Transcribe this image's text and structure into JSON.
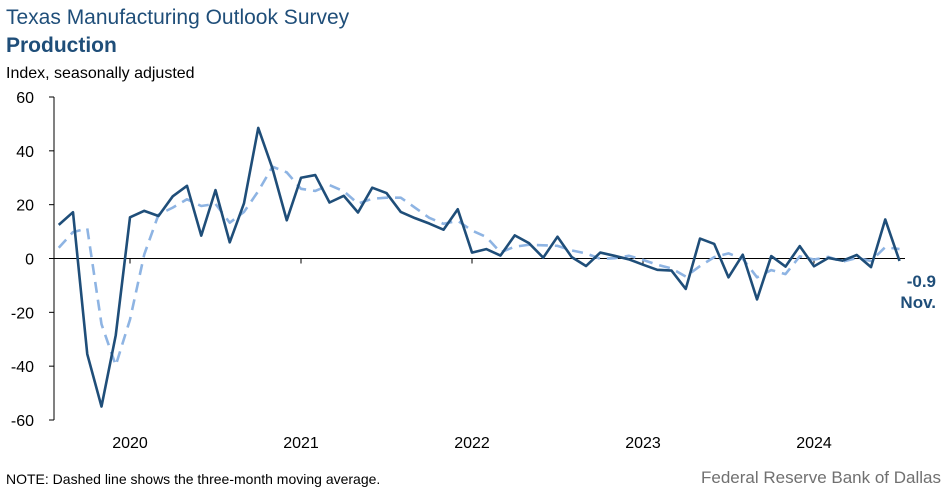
{
  "header": {
    "title": "Texas Manufacturing Outlook Survey",
    "subtitle": "Production",
    "units": "Index, seasonally adjusted"
  },
  "footer": {
    "note": "NOTE: Dashed line shows the three-month  moving average.",
    "source": "Federal Reserve Bank of Dallas"
  },
  "annotation": {
    "value": "-0.9",
    "label": "Nov."
  },
  "colors": {
    "series_solid": "#1f4e79",
    "series_dashed": "#8eb4e3"
  },
  "chart_data": {
    "type": "line",
    "title": "Texas Manufacturing Outlook Survey",
    "subtitle": "Production",
    "ylabel": "Index, seasonally adjusted",
    "ylim": [
      -60,
      60
    ],
    "yticks": [
      60,
      40,
      20,
      0,
      -20,
      -40,
      -60
    ],
    "xtick_labels": [
      "2020",
      "2021",
      "2022",
      "2023",
      "2024"
    ],
    "x_start": "2019-08",
    "x_end": "2024-11",
    "grid": false,
    "series": [
      {
        "style": "solid",
        "values": [
          12.5,
          17.2,
          -35.5,
          -55.0,
          -28.5,
          15.3,
          17.7,
          15.8,
          23.1,
          27.0,
          8.5,
          25.4,
          6.0,
          20.5,
          48.5,
          33.4,
          14.2,
          30.0,
          31.0,
          20.8,
          23.3,
          17.1,
          26.3,
          24.3,
          17.3,
          15.0,
          13.0,
          10.7,
          18.3,
          2.2,
          3.5,
          1.1,
          8.6,
          5.7,
          0.3,
          8.1,
          0.5,
          -2.8,
          2.2,
          1.0,
          -0.3,
          -2.3,
          -4.2,
          -4.5,
          -11.3,
          7.4,
          5.4,
          -7.0,
          1.4,
          -15.2,
          0.9,
          -3.0,
          4.6,
          -2.9,
          0.2,
          -0.8,
          1.3,
          -3.2,
          14.5,
          -0.9
        ]
      },
      {
        "style": "dashed",
        "values": [
          4.0,
          9.8,
          11.2,
          -24.4,
          -39.7,
          -22.7,
          1.5,
          16.3,
          18.9,
          22.0,
          19.5,
          20.3,
          13.3,
          17.3,
          25.0,
          34.1,
          32.0,
          25.9,
          25.1,
          27.3,
          25.0,
          20.4,
          22.2,
          22.6,
          22.6,
          18.9,
          15.1,
          12.9,
          14.0,
          10.4,
          8.0,
          2.3,
          4.4,
          5.1,
          4.9,
          4.7,
          3.0,
          1.9,
          -0.1,
          0.1,
          1.0,
          -0.5,
          -2.3,
          -3.7,
          -6.7,
          -2.8,
          0.5,
          1.9,
          -0.1,
          -7.0,
          -4.3,
          -5.8,
          0.8,
          -0.4,
          0.6,
          -1.2,
          0.2,
          -0.9,
          4.2,
          3.5
        ]
      }
    ]
  }
}
